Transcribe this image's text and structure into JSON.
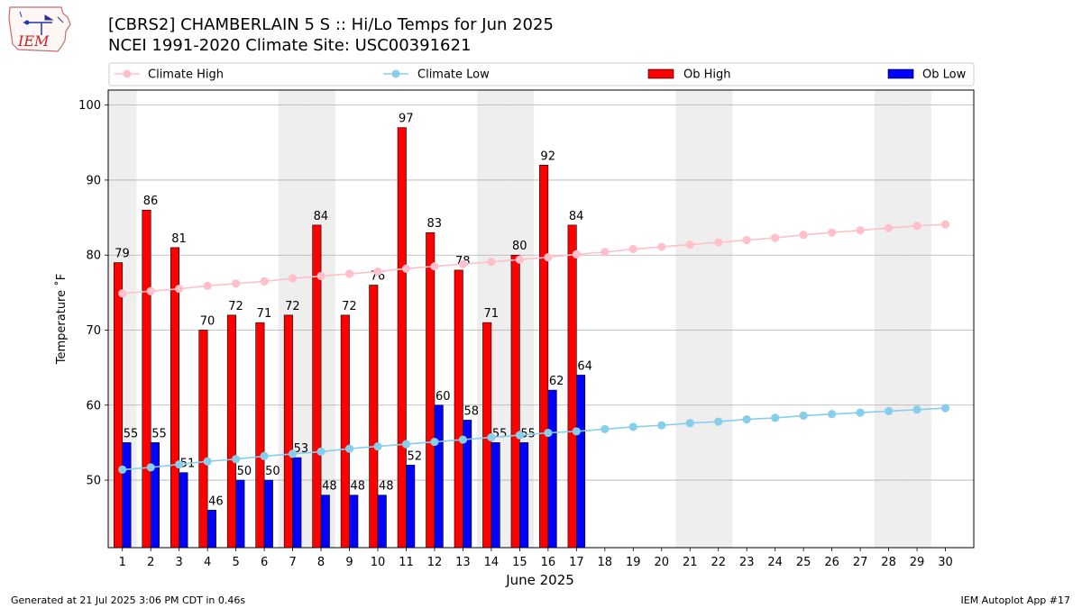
{
  "header": {
    "logo_text": "IEM",
    "title": "[CBRS2] CHAMBERLAIN 5 S :: Hi/Lo Temps for Jun 2025",
    "subtitle": "NCEI 1991-2020 Climate Site: USC00391621"
  },
  "footer": {
    "generated": "Generated at 21 Jul 2025 3:06 PM CDT in 0.46s",
    "app": "IEM Autoplot App #17"
  },
  "chart_data": {
    "type": "bar",
    "xlabel": "June 2025",
    "ylabel": "Temperature ˚F",
    "ylim": [
      41,
      102
    ],
    "yticks": [
      50,
      60,
      70,
      80,
      90,
      100
    ],
    "grid": "horizontal",
    "legend_position": "top, above plot",
    "categories": [
      "1",
      "2",
      "3",
      "4",
      "5",
      "6",
      "7",
      "8",
      "9",
      "10",
      "11",
      "12",
      "13",
      "14",
      "15",
      "16",
      "17",
      "18",
      "19",
      "20",
      "21",
      "22",
      "23",
      "24",
      "25",
      "26",
      "27",
      "28",
      "29",
      "30"
    ],
    "shaded_weekend_days": [
      1,
      7,
      8,
      14,
      15,
      21,
      22,
      28,
      29
    ],
    "shade_color": "#eeeeee",
    "series": [
      {
        "name": "Ob High",
        "kind": "bar",
        "color": "#ff0000",
        "values": [
          79,
          86,
          81,
          70,
          72,
          71,
          72,
          84,
          72,
          76,
          97,
          83,
          78,
          71,
          80,
          92,
          84,
          null,
          null,
          null,
          null,
          null,
          null,
          null,
          null,
          null,
          null,
          null,
          null,
          null
        ]
      },
      {
        "name": "Ob Low",
        "kind": "bar",
        "color": "#0000ff",
        "values": [
          55,
          55,
          51,
          46,
          50,
          50,
          53,
          48,
          48,
          48,
          52,
          60,
          58,
          55,
          55,
          62,
          64,
          null,
          null,
          null,
          null,
          null,
          null,
          null,
          null,
          null,
          null,
          null,
          null,
          null
        ]
      },
      {
        "name": "Climate High",
        "kind": "line",
        "color": "#ffc0cb",
        "values": [
          74.9,
          75.2,
          75.5,
          75.9,
          76.2,
          76.5,
          76.9,
          77.2,
          77.5,
          77.8,
          78.2,
          78.5,
          78.8,
          79.1,
          79.4,
          79.7,
          80.1,
          80.4,
          80.8,
          81.1,
          81.4,
          81.7,
          82.0,
          82.3,
          82.7,
          83.0,
          83.3,
          83.6,
          83.9,
          84.1
        ]
      },
      {
        "name": "Climate Low",
        "kind": "line",
        "color": "#87ceeb",
        "values": [
          51.4,
          51.7,
          52.1,
          52.5,
          52.8,
          53.2,
          53.5,
          53.8,
          54.2,
          54.5,
          54.8,
          55.1,
          55.4,
          55.7,
          56.0,
          56.3,
          56.5,
          56.8,
          57.1,
          57.3,
          57.6,
          57.8,
          58.1,
          58.3,
          58.6,
          58.8,
          59.0,
          59.2,
          59.4,
          59.6
        ]
      }
    ],
    "legend": [
      {
        "label": "Climate High",
        "type": "line",
        "color": "#ffc0cb"
      },
      {
        "label": "Climate Low",
        "type": "line",
        "color": "#87ceeb"
      },
      {
        "label": "Ob High",
        "type": "bar",
        "color": "#ff0000"
      },
      {
        "label": "Ob Low",
        "type": "bar",
        "color": "#0000ff"
      }
    ]
  }
}
